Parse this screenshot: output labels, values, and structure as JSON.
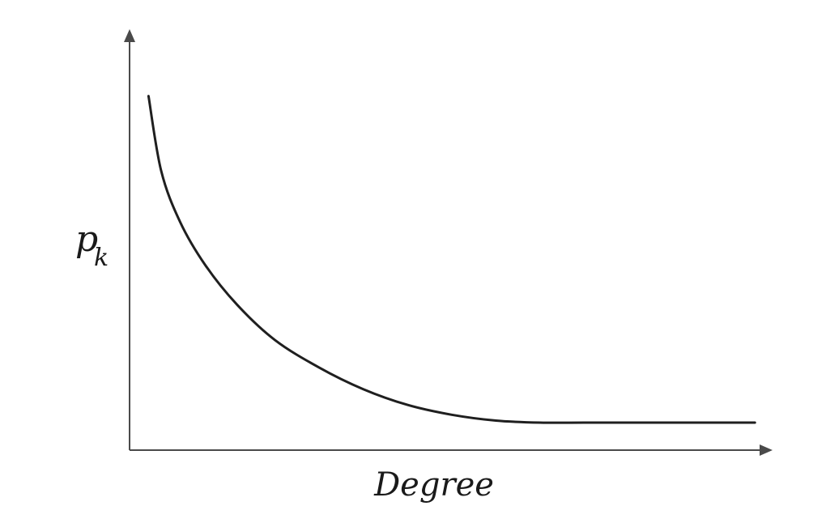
{
  "chart_data": {
    "type": "line",
    "title": "",
    "xlabel": "Degree",
    "ylabel": {
      "main": "p",
      "subscript": "k"
    },
    "xlim": [
      0,
      1
    ],
    "ylim": [
      0,
      1
    ],
    "grid": false,
    "ticks": false,
    "series": [
      {
        "color": "#1f1f1f",
        "x": [
          0.03,
          0.05,
          0.08,
          0.12,
          0.17,
          0.23,
          0.3,
          0.37,
          0.44,
          0.51,
          0.58,
          0.65,
          0.72,
          0.8,
          0.88,
          0.99
        ],
        "y": [
          0.9,
          0.71,
          0.58,
          0.47,
          0.37,
          0.28,
          0.21,
          0.155,
          0.115,
          0.09,
          0.075,
          0.07,
          0.07,
          0.07,
          0.07,
          0.07
        ]
      }
    ]
  }
}
